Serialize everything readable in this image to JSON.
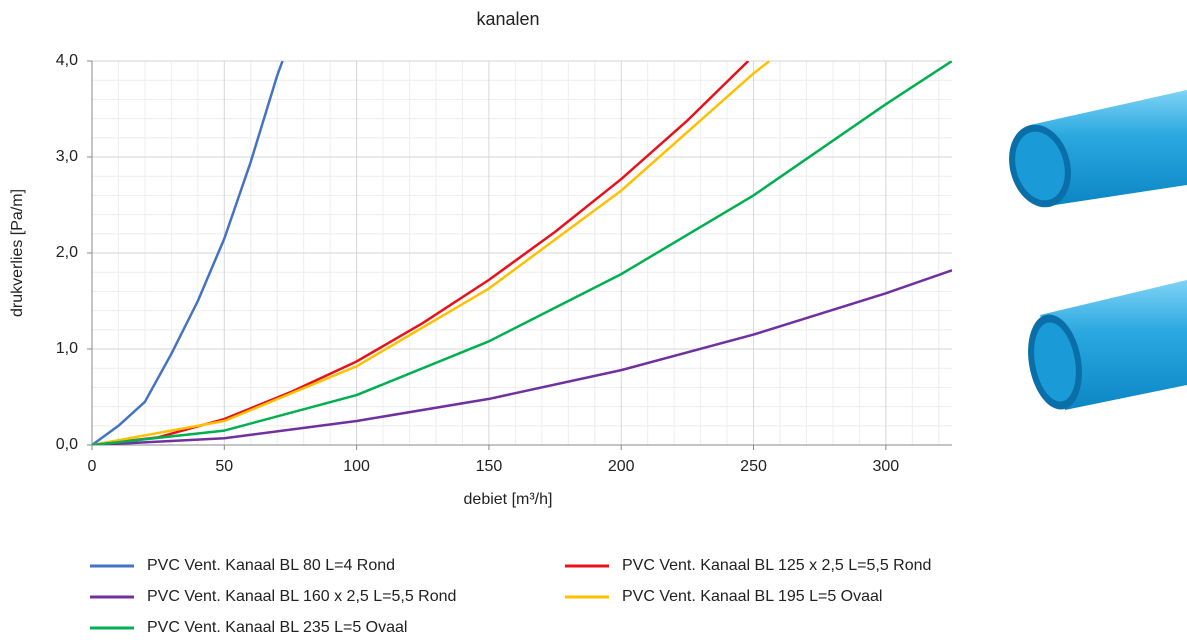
{
  "chart_data": {
    "type": "line",
    "title": "kanalen",
    "xlabel": "debiet [m³/h]",
    "ylabel": "drukverlies [Pa/m]",
    "xlim": [
      0,
      325
    ],
    "ylim": [
      0,
      4
    ],
    "xticks": [
      0,
      50,
      100,
      150,
      200,
      250,
      300
    ],
    "yticks": [
      {
        "value": 0,
        "label": "0,0"
      },
      {
        "value": 1,
        "label": "1,0"
      },
      {
        "value": 2,
        "label": "2,0"
      },
      {
        "value": 3,
        "label": "3,0"
      },
      {
        "value": 4,
        "label": "4,0"
      }
    ],
    "grid": true,
    "series": [
      {
        "name": "PVC Vent. Kanaal BL 80 L=4 Rond",
        "color": "#4472c4",
        "x": [
          0,
          10,
          20,
          30,
          40,
          50,
          60,
          70,
          72
        ],
        "values": [
          0,
          0.2,
          0.45,
          0.95,
          1.5,
          2.15,
          2.95,
          3.85,
          4.0
        ]
      },
      {
        "name": "PVC Vent. Kanaal BL 125 x 2,5 L=5,5 Rond",
        "color": "#e8101a",
        "x": [
          0,
          25,
          50,
          75,
          100,
          125,
          150,
          175,
          200,
          225,
          248
        ],
        "values": [
          0,
          0.08,
          0.27,
          0.55,
          0.87,
          1.27,
          1.72,
          2.22,
          2.77,
          3.38,
          4.0
        ]
      },
      {
        "name": "PVC Vent. Kanaal BL 160 x 2,5 L=5,5 Rond",
        "color": "#7030a0",
        "x": [
          0,
          50,
          100,
          150,
          200,
          250,
          300,
          325
        ],
        "values": [
          0,
          0.07,
          0.25,
          0.48,
          0.78,
          1.15,
          1.58,
          1.82
        ]
      },
      {
        "name": "PVC Vent. Kanaal BL 195 L=5 Ovaal",
        "color": "#ffc000",
        "x": [
          0,
          50,
          100,
          150,
          200,
          250,
          256
        ],
        "values": [
          0,
          0.25,
          0.82,
          1.63,
          2.65,
          3.87,
          4.0
        ]
      },
      {
        "name": "PVC Vent. Kanaal BL 235 L=5 Ovaal",
        "color": "#00b050",
        "x": [
          0,
          50,
          100,
          150,
          200,
          250,
          300,
          325
        ],
        "values": [
          0,
          0.15,
          0.52,
          1.08,
          1.78,
          2.6,
          3.55,
          4.0
        ]
      }
    ]
  }
}
